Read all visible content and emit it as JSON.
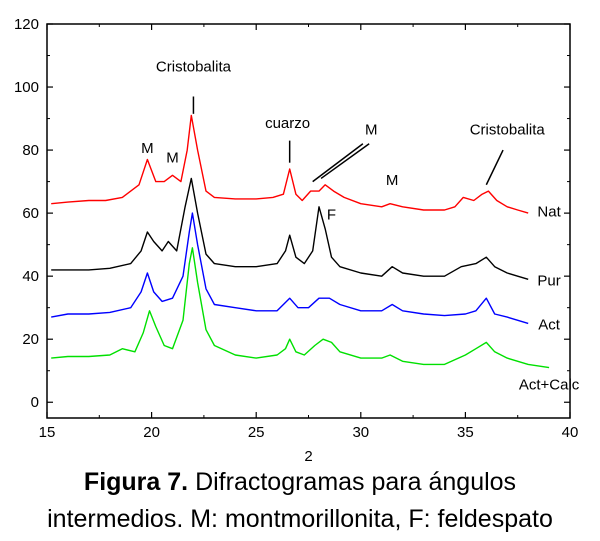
{
  "chart_data": {
    "type": "line",
    "xlabel": "2",
    "ylabel": "",
    "xlim": [
      15,
      40
    ],
    "ylim": [
      -5,
      120
    ],
    "x_ticks": [
      15,
      20,
      25,
      30,
      35,
      40
    ],
    "y_ticks": [
      0,
      20,
      40,
      60,
      80,
      100,
      120
    ],
    "grid": false,
    "series": [
      {
        "name": "Nat",
        "color": "#ff0000",
        "x": [
          15.2,
          16,
          17,
          17.8,
          18.6,
          19.4,
          19.8,
          20.2,
          20.6,
          21,
          21.4,
          21.7,
          21.9,
          22.2,
          22.6,
          23,
          24,
          25,
          25.8,
          26.3,
          26.6,
          26.9,
          27.2,
          27.6,
          28,
          28.3,
          28.7,
          29.2,
          30,
          31,
          31.4,
          32,
          33,
          34,
          34.5,
          34.9,
          35.4,
          35.8,
          36.1,
          36.5,
          37,
          37.5,
          38
        ],
        "y": [
          63,
          63.5,
          64,
          64,
          65,
          69,
          77,
          70,
          70,
          72,
          70,
          80,
          91,
          80,
          67,
          65,
          64.5,
          64.5,
          65,
          66,
          74,
          66,
          64,
          67,
          67,
          69,
          67,
          65,
          63,
          62,
          63,
          62,
          61,
          61,
          62,
          65,
          64,
          66,
          67,
          64,
          62,
          61,
          60
        ]
      },
      {
        "name": "Pur",
        "color": "#000000",
        "x": [
          15.2,
          16,
          17,
          18,
          19,
          19.5,
          19.8,
          20.1,
          20.5,
          20.8,
          21.2,
          21.6,
          21.9,
          22.2,
          22.6,
          23,
          24,
          25,
          26,
          26.4,
          26.6,
          26.9,
          27.3,
          27.7,
          28,
          28.3,
          28.6,
          29,
          30,
          31,
          31.5,
          32,
          33,
          34,
          34.8,
          35.5,
          36,
          36.4,
          37,
          37.5,
          38
        ],
        "y": [
          42,
          42,
          42,
          42.5,
          44,
          48,
          54,
          51,
          48,
          51,
          48,
          62,
          71,
          60,
          47,
          44,
          43,
          43,
          44,
          48,
          53,
          46,
          44,
          48,
          62,
          55,
          46,
          43,
          41,
          40,
          43,
          41,
          40,
          40,
          43,
          44,
          46,
          43,
          41,
          40,
          39
        ]
      },
      {
        "name": "Act",
        "color": "#0000ff",
        "x": [
          15.2,
          16,
          17,
          18,
          19,
          19.5,
          19.8,
          20.1,
          20.5,
          21,
          21.5,
          21.8,
          21.95,
          22.2,
          22.6,
          23,
          24,
          25,
          26,
          26.6,
          27,
          27.5,
          28,
          28.5,
          29,
          30,
          31,
          31.5,
          32,
          33,
          34,
          35,
          35.5,
          36,
          36.4,
          37,
          38
        ],
        "y": [
          27,
          28,
          28,
          28.5,
          30,
          35,
          41,
          35,
          32,
          33,
          40,
          54,
          60,
          50,
          36,
          31,
          30,
          29,
          29,
          33,
          30,
          30,
          33,
          33,
          31,
          29,
          29,
          31,
          29,
          28,
          27.5,
          28,
          29,
          33,
          28,
          27,
          25
        ]
      },
      {
        "name": "Act+Calc",
        "color": "#00e000",
        "x": [
          15.2,
          16,
          17,
          18,
          18.6,
          19.2,
          19.6,
          19.9,
          20.2,
          20.6,
          21,
          21.5,
          21.8,
          21.95,
          22.2,
          22.6,
          23,
          24,
          25,
          26,
          26.4,
          26.6,
          26.9,
          27.3,
          27.8,
          28.2,
          28.6,
          29,
          30,
          31,
          31.4,
          32,
          33,
          34,
          35,
          35.5,
          36,
          36.4,
          37,
          38,
          39
        ],
        "y": [
          14,
          14.5,
          14.5,
          15,
          17,
          16,
          22,
          29,
          24,
          18,
          17,
          26,
          44,
          49,
          38,
          23,
          18,
          15,
          14,
          15,
          17,
          20,
          16,
          15,
          18,
          20,
          19,
          16,
          14,
          14,
          15,
          13,
          12,
          12,
          15,
          17,
          19,
          16,
          14,
          12,
          11
        ]
      }
    ],
    "annotations": [
      {
        "text": "Cristobalita",
        "x": 22,
        "y": 105
      },
      {
        "text": "M",
        "x": 19.8,
        "y": 79
      },
      {
        "text": "M",
        "x": 21,
        "y": 76
      },
      {
        "text": "cuarzo",
        "x": 26.5,
        "y": 87
      },
      {
        "text": "M",
        "x": 30.5,
        "y": 85
      },
      {
        "text": "M",
        "x": 31.5,
        "y": 69
      },
      {
        "text": "Cristobalita",
        "x": 37,
        "y": 85
      },
      {
        "text": "F",
        "x": 28.6,
        "y": 58
      },
      {
        "text": "Nat",
        "x": 39,
        "y": 59
      },
      {
        "text": "Pur",
        "x": 39,
        "y": 37
      },
      {
        "text": "Act",
        "x": 39,
        "y": 23
      },
      {
        "text": "Act+Calc",
        "x": 39,
        "y": 4
      }
    ]
  },
  "caption": {
    "figure_label": "Figura 7.",
    "line1_text": "Difractogramas para ángulos",
    "line2_text": "intermedios. M: montmorillonita, F: feldespato"
  }
}
